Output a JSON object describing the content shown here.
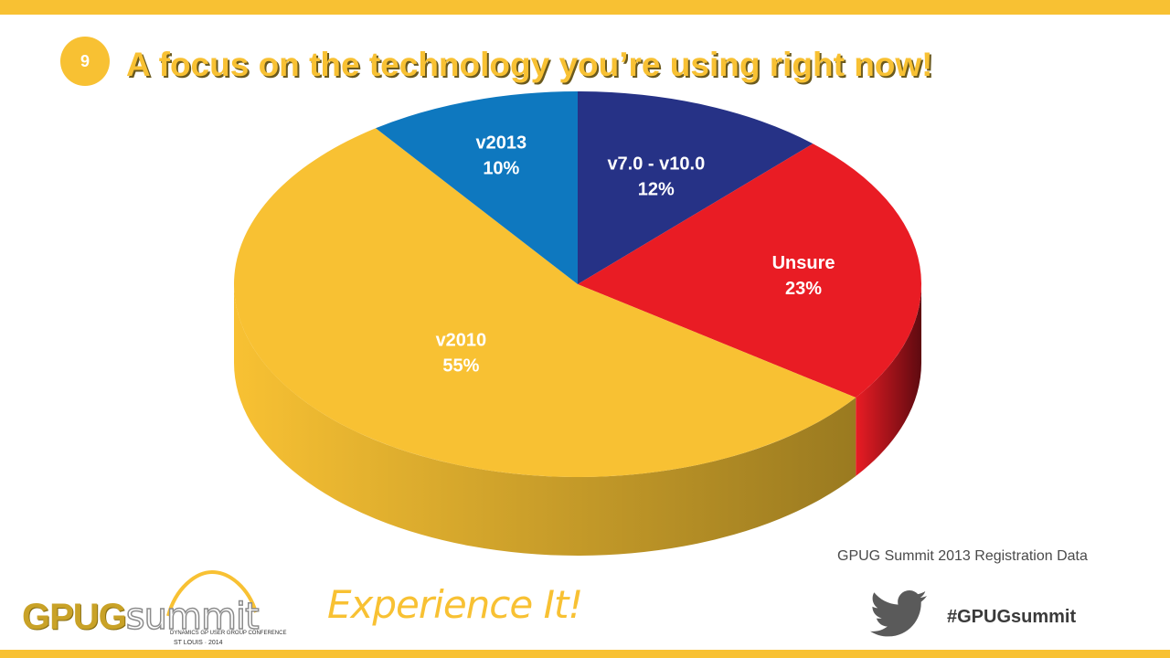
{
  "theme": {
    "accent": "#f8c133",
    "title_color": "#f8c133"
  },
  "slide": {
    "number": "9",
    "title": "A focus on the technology you’re using right now!"
  },
  "chart_data": {
    "type": "pie",
    "style": "3d",
    "slices": [
      {
        "label": "v7.0 - v10.0",
        "value": 12,
        "percent_label": "12%",
        "color": "#263286",
        "side_color": "#141a48"
      },
      {
        "label": "Unsure",
        "value": 23,
        "percent_label": "23%",
        "color": "#e91c24",
        "side_color": "#5e0a10"
      },
      {
        "label": "v2010",
        "value": 55,
        "percent_label": "55%",
        "color": "#f8c133",
        "side_color": "#9a7a20"
      },
      {
        "label": "v2013",
        "value": 10,
        "percent_label": "10%",
        "color": "#0e78bf",
        "side_color": "#074a78"
      }
    ],
    "start_angle_deg": 0,
    "direction": "clockwise"
  },
  "source_note": "GPUG Summit 2013 Registration Data",
  "footer": {
    "logo_gpug": "GPUG",
    "logo_summit": "summit",
    "logo_sub1": "DYNAMICS GP USER GROUP CONFERENCE",
    "logo_sub2": "ST LOUIS · 2014",
    "tagline": "Experience It!",
    "hashtag": "#GPUGsummit",
    "social_icon": "twitter-bird-icon"
  }
}
